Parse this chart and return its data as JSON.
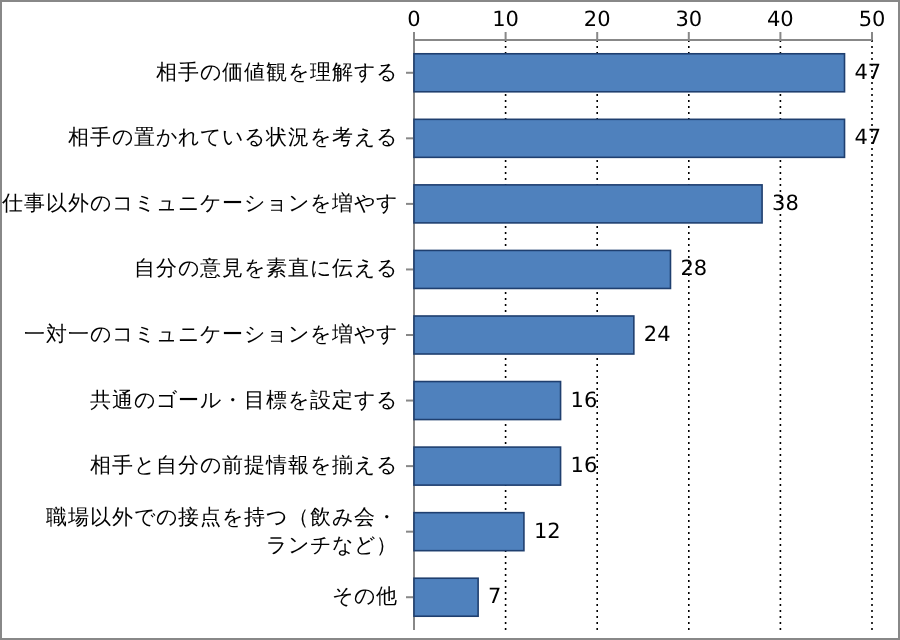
{
  "chart_data": {
    "type": "bar",
    "orientation": "horizontal",
    "categories": [
      "相手の価値観を理解する",
      "相手の置かれている状況を考える",
      "仕事以外のコミュニケーションを増やす",
      "自分の意見を素直に伝える",
      "一対一のコミュニケーションを増やす",
      "共通のゴール・目標を設定する",
      "相手と自分の前提情報を揃える",
      "職場以外での接点を持つ（飲み会・ランチなど）",
      "その他"
    ],
    "values": [
      47,
      47,
      38,
      28,
      24,
      16,
      16,
      12,
      7
    ],
    "color": "#4f81bd",
    "xlim": [
      0,
      50
    ],
    "xticks": [
      0,
      10,
      20,
      30,
      40,
      50
    ],
    "grid": "x",
    "data_labels": true
  }
}
